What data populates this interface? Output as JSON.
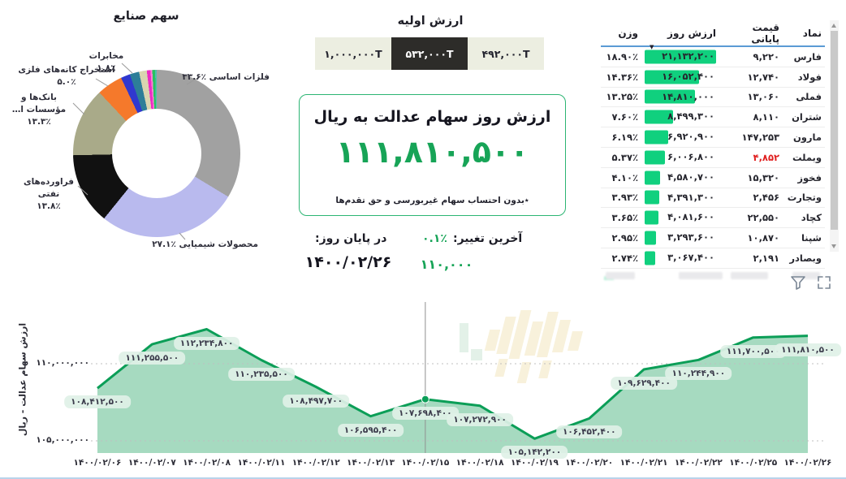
{
  "colors": {
    "accent_green": "#17a457",
    "bar_green": "#10d07e",
    "line_green": "#0b9e57",
    "area_fill": "rgba(44,168,106,0.42)",
    "negative_red": "#e02020",
    "header_line_blue": "#5b9bd5",
    "button_selected_bg": "#2d2c29",
    "button_bg": "#eceee1",
    "card_border": "#2cb573",
    "pill_bg": "rgba(224,241,231,0.92)"
  },
  "initial_value": {
    "title": "ارزش اولیه",
    "options": [
      {
        "label": "۴۹۲,۰۰۰T",
        "selected": false
      },
      {
        "label": "۵۳۲,۰۰۰T",
        "selected": true
      },
      {
        "label": "۱,۰۰۰,۰۰۰T",
        "selected": false
      }
    ]
  },
  "card": {
    "title": "ارزش روز سهام عدالت به ریال",
    "value": "۱۱۱,۸۱۰,۵۰۰",
    "footnote": "٭بدون احتساب سهام غیربورسی و حق تقدم‌ها"
  },
  "summary": {
    "last_change_label": "آخرین تغییر:",
    "last_change_pct": "۰.۱٪",
    "last_change_amount": "۱۱۰,۰۰۰",
    "end_of_day_label": "در پایان روز:",
    "end_of_day_date": "۱۴۰۰/۰۲/۲۶"
  },
  "table": {
    "headers": {
      "symbol": "نماد",
      "close": "قیمت پایانی",
      "value": "ارزش روز",
      "weight": "وزن"
    },
    "sort_icon": "▼",
    "max_value": 21132200,
    "rows": [
      {
        "symbol": "فارس",
        "close": "۹,۲۲۰",
        "value": "۲۱,۱۳۲,۲۰۰",
        "value_num": 21132200,
        "weight": "۱۸.۹۰٪",
        "close_negative": false
      },
      {
        "symbol": "فولاد",
        "close": "۱۲,۷۴۰",
        "value": "۱۶,۰۵۲,۴۰۰",
        "value_num": 16052400,
        "weight": "۱۴.۳۶٪",
        "close_negative": false
      },
      {
        "symbol": "فملی",
        "close": "۱۳,۰۶۰",
        "value": "۱۴,۸۱۰,۰۰۰",
        "value_num": 14810000,
        "weight": "۱۳.۲۵٪",
        "close_negative": false
      },
      {
        "symbol": "شتران",
        "close": "۸,۱۱۰",
        "value": "۸,۴۹۹,۳۰۰",
        "value_num": 8499300,
        "weight": "۷.۶۰٪",
        "close_negative": false
      },
      {
        "symbol": "مارون",
        "close": "۱۴۷,۲۵۳",
        "value": "۶,۹۲۰,۹۰۰",
        "value_num": 6920900,
        "weight": "۶.۱۹٪",
        "close_negative": false
      },
      {
        "symbol": "وبملت",
        "close": "۴,۸۵۲",
        "value": "۶,۰۰۶,۸۰۰",
        "value_num": 6006800,
        "weight": "۵.۳۷٪",
        "close_negative": true
      },
      {
        "symbol": "فخوز",
        "close": "۱۵,۳۲۰",
        "value": "۴,۵۸۰,۷۰۰",
        "value_num": 4580700,
        "weight": "۴.۱۰٪",
        "close_negative": false
      },
      {
        "symbol": "وتجارت",
        "close": "۲,۴۵۶",
        "value": "۴,۳۹۱,۳۰۰",
        "value_num": 4391300,
        "weight": "۳.۹۳٪",
        "close_negative": false
      },
      {
        "symbol": "کچاد",
        "close": "۲۲,۵۵۰",
        "value": "۴,۰۸۱,۶۰۰",
        "value_num": 4081600,
        "weight": "۳.۶۵٪",
        "close_negative": false
      },
      {
        "symbol": "شپنا",
        "close": "۱۰,۸۷۰",
        "value": "۳,۲۹۳,۶۰۰",
        "value_num": 3293600,
        "weight": "۲.۹۵٪",
        "close_negative": false
      },
      {
        "symbol": "وبصادر",
        "close": "۲,۱۹۱",
        "value": "۳,۰۶۷,۴۰۰",
        "value_num": 3067400,
        "weight": "۲.۷۴٪",
        "close_negative": false
      }
    ]
  },
  "chart_data": [
    {
      "type": "pie",
      "title": "سهم صنایع",
      "labels": [
        "فلزات اساسی",
        "محصولات شیمیایی",
        "فراورده‌های نفتی",
        "بانک‌ها و مؤسسات ا…",
        "استخراج کانه‌های فلزی",
        "مخابرات",
        "",
        "",
        "",
        "",
        "",
        ""
      ],
      "values": [
        33.6,
        27.1,
        13.8,
        13.3,
        5.0,
        1.8,
        1.8,
        1.5,
        0.7,
        0.35,
        0.55,
        0.3
      ],
      "pct_labels": [
        "۳۳.۶٪",
        "۲۷.۱٪",
        "۱۳.۸٪",
        "۱۳.۳٪",
        "۵.۰٪",
        "۱.۸٪"
      ],
      "colors": [
        "#a1a1a1",
        "#b9baee",
        "#111111",
        "#a9aa89",
        "#f5792b",
        "#3038cf",
        "#2d7e98",
        "#d9d5b0",
        "#ee2bc4",
        "#ff7fd6",
        "#27c35f",
        "#4fbfae"
      ],
      "donut": true,
      "legend": "callouts"
    },
    {
      "type": "area",
      "ylabel": "ارزش سهام عدالت - ریال",
      "x": [
        "۱۴۰۰/۰۲/۰۶",
        "۱۴۰۰/۰۲/۰۷",
        "۱۴۰۰/۰۲/۰۸",
        "۱۴۰۰/۰۲/۱۱",
        "۱۴۰۰/۰۲/۱۲",
        "۱۴۰۰/۰۲/۱۳",
        "۱۴۰۰/۰۲/۱۵",
        "۱۴۰۰/۰۲/۱۸",
        "۱۴۰۰/۰۲/۱۹",
        "۱۴۰۰/۰۲/۲۰",
        "۱۴۰۰/۰۲/۲۱",
        "۱۴۰۰/۰۲/۲۲",
        "۱۴۰۰/۰۲/۲۵",
        "۱۴۰۰/۰۲/۲۶"
      ],
      "y": [
        108412500,
        111255500,
        112234800,
        110235500,
        108497700,
        106595400,
        107698400,
        107272900,
        105142200,
        106452400,
        109629400,
        110244900,
        111700500,
        111810500
      ],
      "point_labels": [
        "۱۰۸,۴۱۲,۵۰۰",
        "۱۱۱,۲۵۵,۵۰۰",
        "۱۱۲,۲۳۴,۸۰۰",
        "۱۱۰,۲۳۵,۵۰۰",
        "۱۰۸,۴۹۷,۷۰۰",
        "۱۰۶,۵۹۵,۴۰۰",
        "۱۰۷,۶۹۸,۴۰۰",
        "۱۰۷,۲۷۲,۹۰۰",
        "۱۰۵,۱۴۲,۲۰۰",
        "۱۰۶,۴۵۲,۴۰۰",
        "۱۰۹,۶۲۹,۴۰۰",
        "۱۱۰,۲۴۴,۹۰۰",
        "۱۱۱,۷۰۰,۵۰۰",
        "۱۱۱,۸۱۰,۵۰۰"
      ],
      "yticks": [
        {
          "value": 110000000,
          "label": "۱۱۰,۰۰۰,۰۰۰"
        },
        {
          "value": 105000000,
          "label": "۱۰۵,۰۰۰,۰۰۰"
        }
      ],
      "ylim": [
        103500000,
        113500000
      ],
      "grid": "dotted",
      "crosshair_index": 6
    }
  ]
}
